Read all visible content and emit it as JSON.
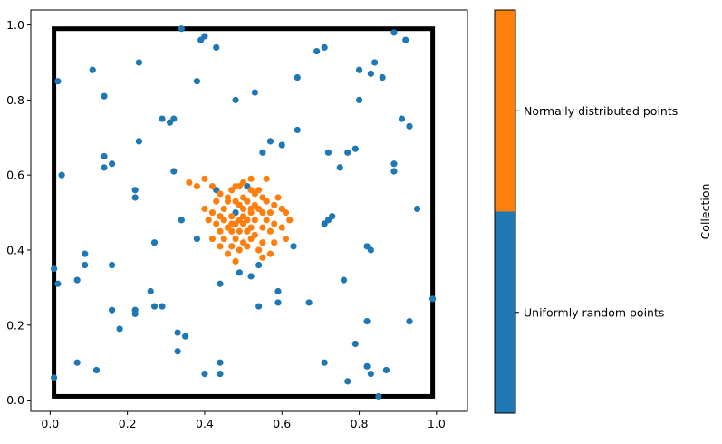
{
  "chart_data": {
    "type": "scatter",
    "title": "",
    "xlabel": "",
    "ylabel": "",
    "xlim": [
      -0.05,
      1.08
    ],
    "ylim": [
      -0.03,
      1.04
    ],
    "xticks": [
      "0.0",
      "0.2",
      "0.4",
      "0.6",
      "0.8",
      "1.0"
    ],
    "yticks": [
      "0.0",
      "0.2",
      "0.4",
      "0.6",
      "0.8",
      "1.0"
    ],
    "grid": false,
    "legend": "none",
    "bounding_square": {
      "x0": 0.01,
      "y0": 0.01,
      "x1": 0.99,
      "y1": 0.99,
      "color": "#000000"
    },
    "colorbar": {
      "label": "Collection",
      "ticks": [
        "Uniformly random points",
        "Normally distributed points"
      ],
      "colors": [
        "#1f77b4",
        "#ff7f0e"
      ]
    },
    "series": [
      {
        "color": "#1f77b4",
        "points": [
          [
            0.34,
            0.99
          ],
          [
            0.39,
            0.96
          ],
          [
            0.4,
            0.97
          ],
          [
            0.43,
            0.94
          ],
          [
            0.69,
            0.93
          ],
          [
            0.71,
            0.94
          ],
          [
            0.89,
            0.98
          ],
          [
            0.92,
            0.96
          ],
          [
            0.02,
            0.85
          ],
          [
            0.11,
            0.88
          ],
          [
            0.23,
            0.9
          ],
          [
            0.38,
            0.85
          ],
          [
            0.48,
            0.8
          ],
          [
            0.53,
            0.82
          ],
          [
            0.64,
            0.86
          ],
          [
            0.8,
            0.88
          ],
          [
            0.83,
            0.87
          ],
          [
            0.84,
            0.9
          ],
          [
            0.86,
            0.86
          ],
          [
            0.14,
            0.81
          ],
          [
            0.8,
            0.8
          ],
          [
            0.29,
            0.75
          ],
          [
            0.31,
            0.74
          ],
          [
            0.32,
            0.75
          ],
          [
            0.91,
            0.75
          ],
          [
            0.93,
            0.73
          ],
          [
            0.64,
            0.72
          ],
          [
            0.14,
            0.65
          ],
          [
            0.16,
            0.63
          ],
          [
            0.14,
            0.62
          ],
          [
            0.23,
            0.69
          ],
          [
            0.55,
            0.66
          ],
          [
            0.57,
            0.69
          ],
          [
            0.6,
            0.68
          ],
          [
            0.72,
            0.66
          ],
          [
            0.77,
            0.66
          ],
          [
            0.79,
            0.67
          ],
          [
            0.75,
            0.62
          ],
          [
            0.89,
            0.61
          ],
          [
            0.89,
            0.63
          ],
          [
            0.03,
            0.6
          ],
          [
            0.32,
            0.61
          ],
          [
            0.22,
            0.54
          ],
          [
            0.22,
            0.56
          ],
          [
            0.43,
            0.56
          ],
          [
            0.48,
            0.5
          ],
          [
            0.51,
            0.57
          ],
          [
            0.34,
            0.48
          ],
          [
            0.71,
            0.47
          ],
          [
            0.72,
            0.48
          ],
          [
            0.73,
            0.49
          ],
          [
            0.95,
            0.51
          ],
          [
            0.27,
            0.42
          ],
          [
            0.38,
            0.43
          ],
          [
            0.63,
            0.41
          ],
          [
            0.82,
            0.41
          ],
          [
            0.83,
            0.4
          ],
          [
            0.09,
            0.39
          ],
          [
            0.09,
            0.36
          ],
          [
            0.16,
            0.36
          ],
          [
            0.07,
            0.32
          ],
          [
            0.49,
            0.34
          ],
          [
            0.52,
            0.33
          ],
          [
            0.54,
            0.36
          ],
          [
            0.01,
            0.35
          ],
          [
            0.02,
            0.31
          ],
          [
            0.44,
            0.31
          ],
          [
            0.59,
            0.29
          ],
          [
            0.26,
            0.29
          ],
          [
            0.59,
            0.26
          ],
          [
            0.54,
            0.25
          ],
          [
            0.67,
            0.26
          ],
          [
            0.76,
            0.32
          ],
          [
            0.99,
            0.27
          ],
          [
            0.16,
            0.24
          ],
          [
            0.22,
            0.24
          ],
          [
            0.22,
            0.23
          ],
          [
            0.27,
            0.25
          ],
          [
            0.29,
            0.25
          ],
          [
            0.18,
            0.19
          ],
          [
            0.33,
            0.18
          ],
          [
            0.35,
            0.17
          ],
          [
            0.82,
            0.21
          ],
          [
            0.93,
            0.21
          ],
          [
            0.33,
            0.13
          ],
          [
            0.79,
            0.15
          ],
          [
            0.07,
            0.1
          ],
          [
            0.12,
            0.08
          ],
          [
            0.4,
            0.07
          ],
          [
            0.44,
            0.1
          ],
          [
            0.44,
            0.07
          ],
          [
            0.71,
            0.1
          ],
          [
            0.77,
            0.05
          ],
          [
            0.82,
            0.09
          ],
          [
            0.83,
            0.07
          ],
          [
            0.87,
            0.08
          ],
          [
            0.01,
            0.06
          ],
          [
            0.85,
            0.01
          ]
        ]
      },
      {
        "color": "#ff7f0e",
        "points": [
          [
            0.4,
            0.59
          ],
          [
            0.52,
            0.59
          ],
          [
            0.56,
            0.59
          ],
          [
            0.5,
            0.58
          ],
          [
            0.36,
            0.58
          ],
          [
            0.38,
            0.57
          ],
          [
            0.42,
            0.57
          ],
          [
            0.48,
            0.57
          ],
          [
            0.49,
            0.57
          ],
          [
            0.47,
            0.56
          ],
          [
            0.52,
            0.56
          ],
          [
            0.54,
            0.56
          ],
          [
            0.44,
            0.55
          ],
          [
            0.46,
            0.54
          ],
          [
            0.5,
            0.54
          ],
          [
            0.53,
            0.55
          ],
          [
            0.55,
            0.54
          ],
          [
            0.59,
            0.54
          ],
          [
            0.43,
            0.53
          ],
          [
            0.46,
            0.53
          ],
          [
            0.48,
            0.53
          ],
          [
            0.51,
            0.53
          ],
          [
            0.53,
            0.52
          ],
          [
            0.56,
            0.53
          ],
          [
            0.4,
            0.51
          ],
          [
            0.45,
            0.51
          ],
          [
            0.49,
            0.52
          ],
          [
            0.5,
            0.51
          ],
          [
            0.52,
            0.51
          ],
          [
            0.54,
            0.51
          ],
          [
            0.58,
            0.52
          ],
          [
            0.6,
            0.51
          ],
          [
            0.42,
            0.5
          ],
          [
            0.44,
            0.49
          ],
          [
            0.47,
            0.49
          ],
          [
            0.5,
            0.49
          ],
          [
            0.52,
            0.5
          ],
          [
            0.55,
            0.5
          ],
          [
            0.57,
            0.5
          ],
          [
            0.61,
            0.5
          ],
          [
            0.41,
            0.48
          ],
          [
            0.45,
            0.48
          ],
          [
            0.47,
            0.47
          ],
          [
            0.49,
            0.48
          ],
          [
            0.51,
            0.48
          ],
          [
            0.53,
            0.48
          ],
          [
            0.56,
            0.48
          ],
          [
            0.58,
            0.47
          ],
          [
            0.62,
            0.48
          ],
          [
            0.43,
            0.47
          ],
          [
            0.46,
            0.46
          ],
          [
            0.48,
            0.47
          ],
          [
            0.5,
            0.47
          ],
          [
            0.52,
            0.46
          ],
          [
            0.55,
            0.46
          ],
          [
            0.44,
            0.45
          ],
          [
            0.47,
            0.45
          ],
          [
            0.49,
            0.45
          ],
          [
            0.51,
            0.45
          ],
          [
            0.53,
            0.44
          ],
          [
            0.57,
            0.45
          ],
          [
            0.6,
            0.46
          ],
          [
            0.42,
            0.43
          ],
          [
            0.45,
            0.43
          ],
          [
            0.48,
            0.43
          ],
          [
            0.5,
            0.42
          ],
          [
            0.52,
            0.43
          ],
          [
            0.55,
            0.42
          ],
          [
            0.58,
            0.42
          ],
          [
            0.44,
            0.41
          ],
          [
            0.47,
            0.41
          ],
          [
            0.49,
            0.4
          ],
          [
            0.51,
            0.41
          ],
          [
            0.54,
            0.4
          ],
          [
            0.46,
            0.39
          ],
          [
            0.48,
            0.37
          ],
          [
            0.55,
            0.38
          ],
          [
            0.57,
            0.39
          ],
          [
            0.61,
            0.43
          ]
        ]
      }
    ]
  }
}
